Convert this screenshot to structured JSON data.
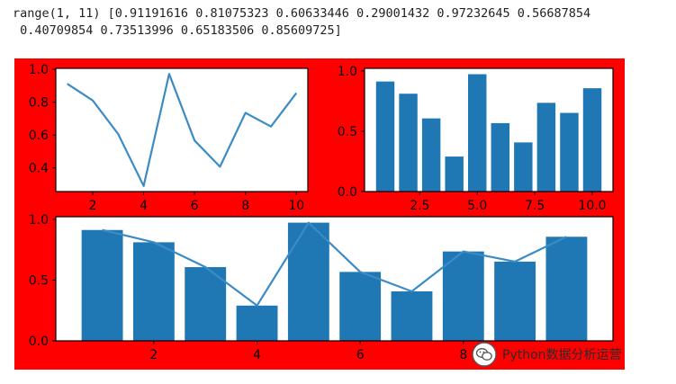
{
  "console": {
    "line1": "range(1, 11) [0.91191616 0.81075323 0.60633446 0.29001432 0.97232645 0.56687854",
    "line2": " 0.40709854 0.73513996 0.65183506 0.85609725]"
  },
  "figure": {
    "facecolor": "#ff0000"
  },
  "watermark": {
    "text": "Python数据分析运营"
  },
  "chart_data": [
    {
      "type": "line",
      "x": [
        1,
        2,
        3,
        4,
        5,
        6,
        7,
        8,
        9,
        10
      ],
      "y": [
        0.91191616,
        0.81075323,
        0.60633446,
        0.29001432,
        0.97232645,
        0.56687854,
        0.40709854,
        0.73513996,
        0.65183506,
        0.85609725
      ],
      "title": "",
      "xlabel": "",
      "ylabel": "",
      "xlim": [
        0.55,
        10.45
      ],
      "ylim": [
        0.256,
        1.006
      ],
      "xticks": [
        "2",
        "4",
        "6",
        "8",
        "10"
      ],
      "yticks": [
        "0.4",
        "0.6",
        "0.8",
        "1.0"
      ],
      "color": "#3c8bc4",
      "grid": false
    },
    {
      "type": "bar",
      "x": [
        1,
        2,
        3,
        4,
        5,
        6,
        7,
        8,
        9,
        10
      ],
      "values": [
        0.91191616,
        0.81075323,
        0.60633446,
        0.29001432,
        0.97232645,
        0.56687854,
        0.40709854,
        0.73513996,
        0.65183506,
        0.85609725
      ],
      "title": "",
      "xlabel": "",
      "ylabel": "",
      "xlim": [
        0.1,
        10.9
      ],
      "ylim": [
        0,
        1.021
      ],
      "xticks": [
        "2.5",
        "5.0",
        "7.5",
        "10.0"
      ],
      "yticks": [
        "0.0",
        "0.5",
        "1.0"
      ],
      "color": "#1f77b4",
      "grid": false
    },
    {
      "type": "bar",
      "x": [
        1,
        2,
        3,
        4,
        5,
        6,
        7,
        8,
        9,
        10
      ],
      "values": [
        0.91191616,
        0.81075323,
        0.60633446,
        0.29001432,
        0.97232645,
        0.56687854,
        0.40709854,
        0.73513996,
        0.65183506,
        0.85609725
      ],
      "overlay_line": [
        0.91191616,
        0.81075323,
        0.60633446,
        0.29001432,
        0.97232645,
        0.56687854,
        0.40709854,
        0.73513996,
        0.65183506,
        0.85609725
      ],
      "title": "",
      "xlabel": "",
      "ylabel": "",
      "xlim": [
        0.1,
        10.9
      ],
      "ylim": [
        0,
        1.021
      ],
      "xticks": [
        "2",
        "4",
        "6",
        "8"
      ],
      "yticks": [
        "0.0",
        "0.5",
        "1.0"
      ],
      "color": "#1f77b4",
      "line_color": "#3c8bc4",
      "grid": false
    }
  ]
}
